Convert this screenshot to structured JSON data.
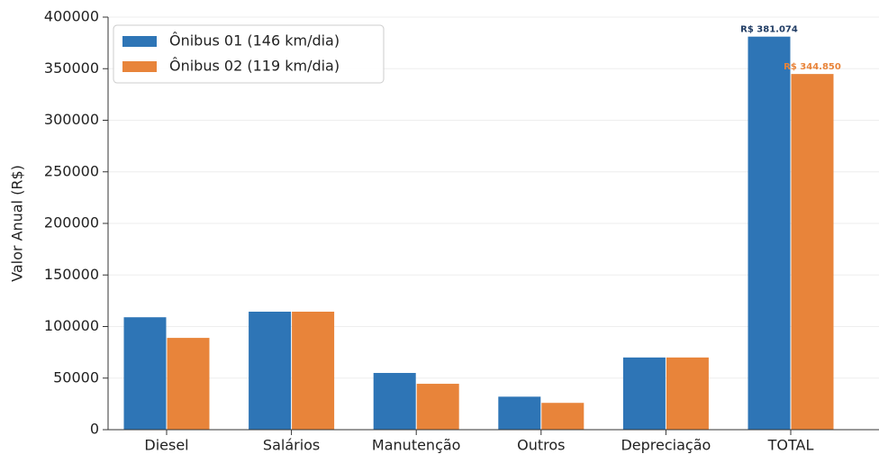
{
  "chart_data": {
    "type": "bar",
    "ylabel": "Valor Anual (R$)",
    "categories": [
      "Diesel",
      "Salários",
      "Manutenção",
      "Outros",
      "Depreciação",
      "TOTAL"
    ],
    "series": [
      {
        "name": "Ônibus 01 (146 km/dia)",
        "color": "#2e75b6",
        "label_color": "#1f3b63",
        "values": [
          109000,
          114400,
          55000,
          32000,
          70000,
          381074
        ],
        "value_labels": [
          null,
          null,
          null,
          null,
          null,
          "R$ 381.074"
        ]
      },
      {
        "name": "Ônibus 02 (119 km/dia)",
        "color": "#e8843a",
        "label_color": "#e8843a",
        "values": [
          89000,
          114400,
          44500,
          26000,
          70000,
          344850
        ],
        "value_labels": [
          null,
          null,
          null,
          null,
          null,
          "R$ 344.850"
        ]
      }
    ],
    "ylim": [
      0,
      400000
    ],
    "yticks": [
      0,
      50000,
      100000,
      150000,
      200000,
      250000,
      300000,
      350000,
      400000
    ],
    "grid": true,
    "legend": "upper left"
  }
}
